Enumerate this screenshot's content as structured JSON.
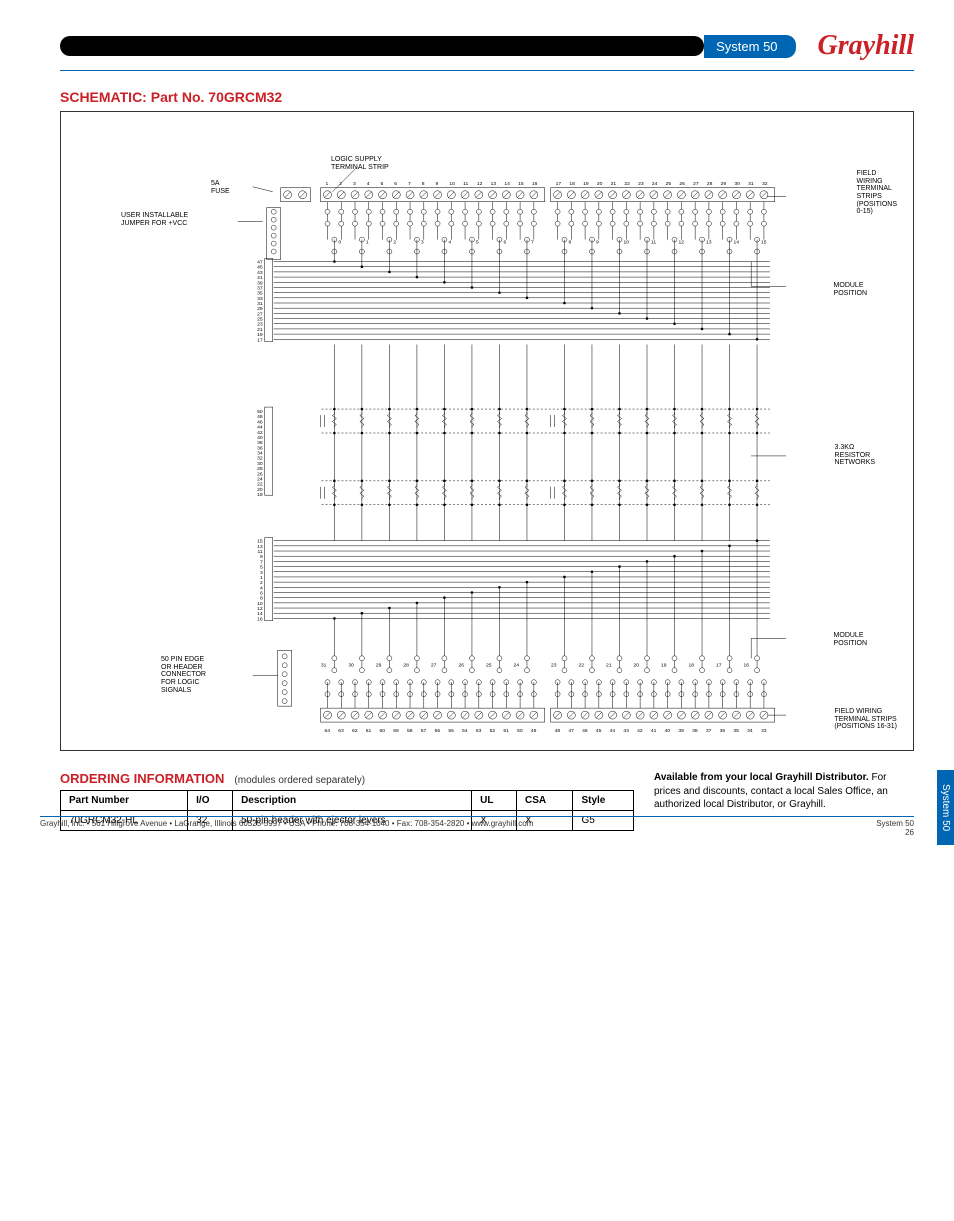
{
  "header": {
    "system_label": "System 50",
    "brand": "Grayhill"
  },
  "schematic": {
    "title": "SCHEMATIC: Part No. 70GRCM32",
    "labels": {
      "logic_supply": "LOGIC SUPPLY\nTERMINAL STRIP",
      "fuse": "5A\nFUSE",
      "user_jumper": "USER INSTALLABLE\nJUMPER FOR +VCC",
      "field_top": "FIELD\nWIRING\nTERMINAL\nSTRIPS\n(POSITIONS\n0-15)",
      "module_pos_top": "MODULE\nPOSITION",
      "resistor": "3.3KΩ\nRESISTOR\nNETWORKS",
      "module_pos_bot": "MODULE\nPOSITION",
      "connector": "50 PIN EDGE\nOR HEADER\nCONNECTOR\nFOR LOGIC\nSIGNALS",
      "field_bot": "FIELD WIRING\nTERMINAL STRIPS\n(POSITIONS 16-31)"
    },
    "top_terminal_numbers": [
      "1",
      "2",
      "3",
      "4",
      "5",
      "6",
      "7",
      "8",
      "9",
      "10",
      "11",
      "12",
      "13",
      "14",
      "15",
      "16",
      "17",
      "18",
      "19",
      "20",
      "21",
      "22",
      "23",
      "24",
      "25",
      "26",
      "27",
      "28",
      "29",
      "30",
      "31",
      "32"
    ],
    "top_module_numbers": [
      "0",
      "1",
      "2",
      "3",
      "4",
      "5",
      "6",
      "7",
      "8",
      "9",
      "10",
      "11",
      "12",
      "13",
      "14",
      "15"
    ],
    "bot_module_numbers": [
      "31",
      "30",
      "29",
      "28",
      "27",
      "26",
      "25",
      "24",
      "23",
      "22",
      "21",
      "20",
      "19",
      "18",
      "17",
      "16"
    ],
    "bot_terminal_numbers": [
      "64",
      "63",
      "62",
      "61",
      "60",
      "59",
      "58",
      "57",
      "56",
      "55",
      "54",
      "53",
      "52",
      "51",
      "50",
      "49",
      "48",
      "47",
      "46",
      "45",
      "44",
      "43",
      "42",
      "41",
      "40",
      "39",
      "38",
      "37",
      "36",
      "35",
      "34",
      "33"
    ],
    "left_bus_top": [
      "47",
      "45",
      "43",
      "41",
      "39",
      "37",
      "35",
      "33",
      "31",
      "29",
      "27",
      "25",
      "23",
      "21",
      "19",
      "17"
    ],
    "left_bus_top2": [
      "50",
      "48",
      "46",
      "44",
      "42",
      "40",
      "38",
      "36",
      "34",
      "32",
      "30",
      "28",
      "26",
      "24",
      "22",
      "20",
      "18"
    ],
    "left_bus_bot": [
      "15",
      "13",
      "11",
      "9",
      "7",
      "5",
      "3",
      "1",
      "2",
      "4",
      "6",
      "8",
      "10",
      "12",
      "14",
      "16"
    ],
    "fuse_plus": "+",
    "fuse_minus": "–",
    "row49": "49"
  },
  "side_tab": "System 50",
  "ordering": {
    "title": "ORDERING INFORMATION",
    "note": "(modules ordered separately)",
    "columns": [
      "Part Number",
      "I/O",
      "Description",
      "UL",
      "CSA",
      "Style"
    ],
    "rows": [
      [
        "70GRCM32-HL",
        "32",
        "50-pin header with ejector levers",
        "X",
        "X",
        "G5"
      ]
    ],
    "distributor_bold": "Available from your local Grayhill Distributor.",
    "distributor_text": "For prices and discounts, contact a local Sales Office, an authorized local Distributor, or Grayhill.",
    "colors": {
      "accent": "#cb2026",
      "blue": "#0066b3"
    }
  },
  "footer": {
    "left": "Grayhill, Inc. • 561 Hillgrove Avenue • LaGrange, Illinois 60525-5997 • USA • Phone: 708-354-1040 • Fax: 708-354-2820 • www.grayhill.com",
    "right_top": "System 50",
    "right_bottom": "26"
  }
}
